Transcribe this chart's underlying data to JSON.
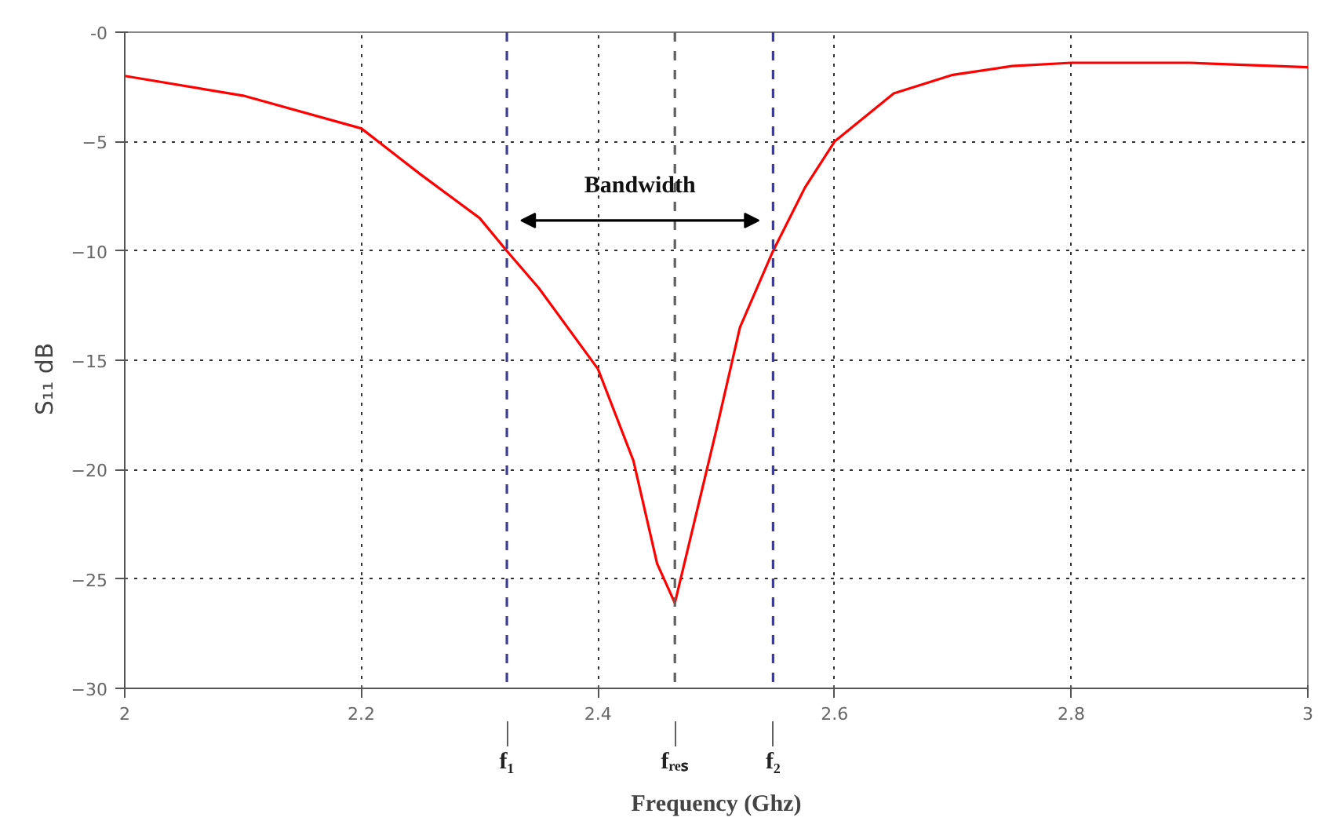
{
  "chart_data": {
    "type": "line",
    "xlabel": "Frequency (Ghz)",
    "ylabel": "S₁₁      dB",
    "x": [
      2,
      2.1,
      2.2,
      2.25,
      2.3,
      2.323,
      2.35,
      2.4,
      2.43,
      2.45,
      2.465,
      2.5,
      2.52,
      2.548,
      2.575,
      2.6,
      2.65,
      2.7,
      2.75,
      2.8,
      2.9,
      2.95,
      3
    ],
    "series": [
      {
        "color": "#ff0000",
        "values": [
          -2.0,
          -2.9,
          -4.4,
          -6.5,
          -8.5,
          -10,
          -11.7,
          -15.4,
          -19.6,
          -24.3,
          -26.1,
          -18.2,
          -13.5,
          -10,
          -7.1,
          -5.0,
          -2.8,
          -1.95,
          -1.55,
          -1.4,
          -1.4,
          -1.5,
          -1.6
        ]
      }
    ],
    "xlim": [
      2,
      3
    ],
    "ylim": [
      -30,
      0
    ],
    "xticks": [
      2,
      2.2,
      2.4,
      2.6,
      2.8,
      3
    ],
    "yticks": [
      {
        "value": 0,
        "label": "-0"
      },
      -5,
      -10,
      -15,
      -20,
      -25,
      -30
    ],
    "grid": true,
    "marker": "none",
    "line_style": "solid",
    "ref_lines": [
      {
        "axis": "x",
        "value": 2.323,
        "label": "f₁",
        "color": "#3c3c96",
        "line_style": "dashed"
      },
      {
        "axis": "x",
        "value": 2.465,
        "label": "fᵣₑₛ",
        "color": "#606060",
        "line_style": "dashed"
      },
      {
        "axis": "x",
        "value": 2.548,
        "label": "f₂",
        "color": "#3c3c96",
        "line_style": "dashed"
      }
    ],
    "annotations": [
      "Bandwidth"
    ]
  }
}
